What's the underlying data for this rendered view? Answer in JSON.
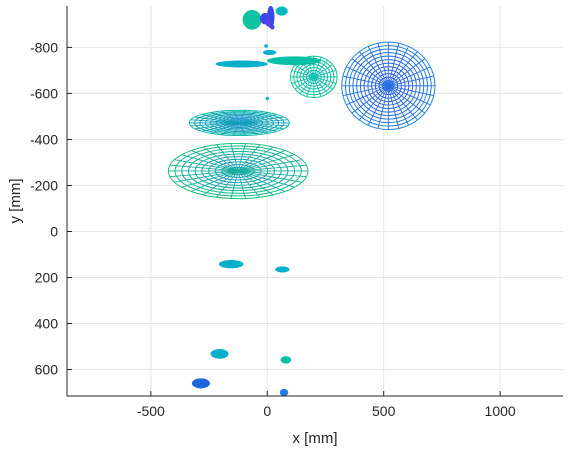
{
  "chart_data": {
    "type": "scatter",
    "xlabel": "x [mm]",
    "ylabel": "y [mm]",
    "xlim": [
      -860,
      1270
    ],
    "ylim": [
      -980,
      715
    ],
    "y_reversed": true,
    "grid": true,
    "xticks": [
      -500,
      0,
      500,
      1000
    ],
    "yticks": [
      -800,
      -600,
      -400,
      -200,
      0,
      200,
      400,
      600
    ],
    "colors": {
      "blue": "#3a49e6",
      "mid_blue": "#1d88de",
      "cyan": "#06b0cc",
      "teal": "#05bfa6",
      "green": "#0fc47a"
    },
    "wireframes": [
      {
        "cx": 520,
        "cy": -633,
        "rx": 200,
        "ry": 190,
        "rings": 12,
        "spokes": 28,
        "color_in": "#3a49e6",
        "color_out": "#1d88de"
      },
      {
        "cx": 200,
        "cy": -672,
        "rx": 100,
        "ry": 90,
        "rings": 7,
        "spokes": 20,
        "color_in": "#12b8d2",
        "color_out": "#10c690"
      },
      {
        "cx": -120,
        "cy": -472,
        "rx": 215,
        "ry": 55,
        "rings": 9,
        "spokes": 26,
        "color_in": "#2179dd",
        "color_out": "#08bba3"
      },
      {
        "cx": -125,
        "cy": -263,
        "rx": 300,
        "ry": 120,
        "rings": 10,
        "spokes": 30,
        "color_in": "#1d88de",
        "color_out": "#19c67a"
      }
    ],
    "blobs": [
      {
        "x": -65,
        "y": -920,
        "rx": 40,
        "ry": 42,
        "color": "#10c3a0"
      },
      {
        "x": 62,
        "y": -958,
        "rx": 25,
        "ry": 19,
        "color": "#06b9be"
      },
      {
        "x": -10,
        "y": -925,
        "rx": 20,
        "ry": 24,
        "color": "#3a49e6"
      },
      {
        "x": 15,
        "y": -932,
        "rx": 15,
        "ry": 48,
        "color": "#3a49e6"
      },
      {
        "x": 5,
        "y": -905,
        "rx": 11,
        "ry": 14,
        "color": "#5a3ee6"
      },
      {
        "x": 22,
        "y": -888,
        "rx": 8,
        "ry": 9,
        "color": "#3a49e6"
      },
      {
        "x": 10,
        "y": -778,
        "rx": 28,
        "ry": 10,
        "color": "#06b0cc"
      },
      {
        "x": -5,
        "y": -806,
        "rx": 7,
        "ry": 7,
        "color": "#06b0cc"
      },
      {
        "x": 115,
        "y": -742,
        "rx": 115,
        "ry": 18,
        "color": "#05bfa6"
      },
      {
        "x": -110,
        "y": -728,
        "rx": 112,
        "ry": 14,
        "color": "#06b0cc"
      },
      {
        "x": 0,
        "y": -578,
        "rx": 5,
        "ry": 6,
        "color": "#06b0cc"
      },
      {
        "x": -155,
        "y": 142,
        "rx": 52,
        "ry": 17,
        "color": "#06b0cc"
      },
      {
        "x": 65,
        "y": 165,
        "rx": 30,
        "ry": 12,
        "color": "#06b0cc"
      },
      {
        "x": -205,
        "y": 532,
        "rx": 38,
        "ry": 20,
        "color": "#06b0cc"
      },
      {
        "x": 80,
        "y": 558,
        "rx": 22,
        "ry": 15,
        "color": "#05bfa6"
      },
      {
        "x": -285,
        "y": 660,
        "rx": 38,
        "ry": 21,
        "color": "#1e66de"
      },
      {
        "x": 72,
        "y": 700,
        "rx": 17,
        "ry": 15,
        "color": "#2279dd"
      }
    ]
  }
}
